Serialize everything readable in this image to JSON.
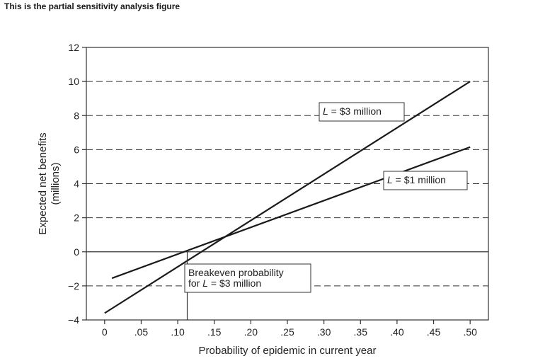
{
  "caption": "This is the partial sensitivity analysis figure",
  "chart_data": {
    "type": "line",
    "title": "",
    "xlabel": "Probability of epidemic in current year",
    "ylabel_line1": "Expected net benefits",
    "ylabel_line2": "(millions)",
    "xlim": [
      -0.025,
      0.525
    ],
    "ylim": [
      -4,
      12
    ],
    "x_ticks": [
      0,
      0.05,
      0.1,
      0.15,
      0.2,
      0.25,
      0.3,
      0.35,
      0.4,
      0.45,
      0.5
    ],
    "x_tick_labels": [
      "0",
      ".05",
      ".10",
      ".15",
      ".20",
      ".25",
      ".30",
      ".35",
      ".40",
      ".45",
      ".50"
    ],
    "y_ticks": [
      -4,
      -2,
      0,
      2,
      4,
      6,
      8,
      10,
      12
    ],
    "y_tick_labels": [
      "−4",
      "−2",
      "0",
      "2",
      "4",
      "6",
      "8",
      "10",
      "12"
    ],
    "gridlines_dashed_at": [
      -2,
      2,
      4,
      6,
      8,
      10
    ],
    "zero_line": 0,
    "series": [
      {
        "label_prefix": "L",
        "label_suffix": " = $3 million",
        "x": [
          0,
          0.5
        ],
        "y": [
          -3.6,
          10.0
        ]
      },
      {
        "label_prefix": "L",
        "label_suffix": " = $1 million",
        "x": [
          0.01,
          0.5
        ],
        "y": [
          -1.55,
          6.15
        ]
      }
    ],
    "annotations": {
      "breakeven_line1": "Breakeven probability",
      "breakeven_line2_prefix": "for ",
      "breakeven_line2_italic": "L",
      "breakeven_line2_suffix": " = $3 million",
      "breakeven_x": 0.113
    }
  }
}
